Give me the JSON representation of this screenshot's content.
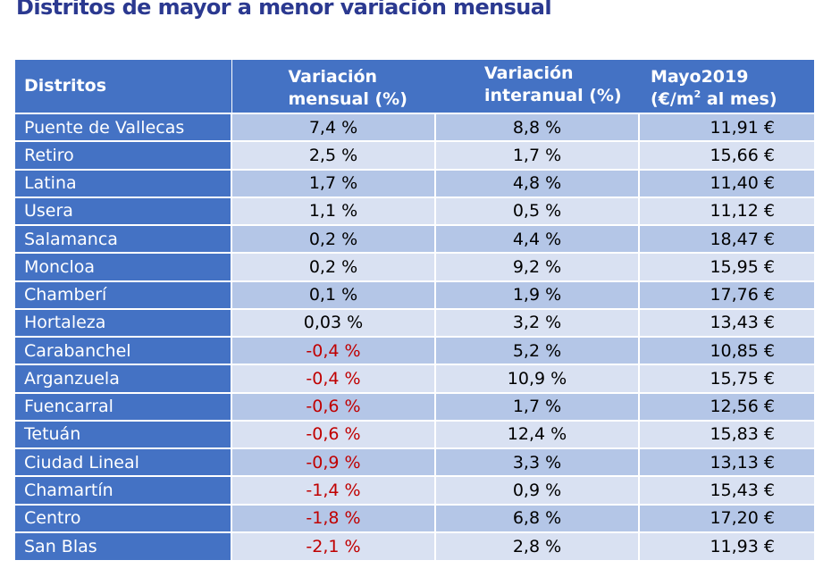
{
  "title": "Distritos de mayor a menor variación mensual",
  "colors": {
    "title": "#2b3990",
    "header_bg": "#4472c4",
    "row_dark": "#b4c6e7",
    "row_light": "#d9e1f2",
    "negative": "#c00000"
  },
  "headers": {
    "district": "Distritos",
    "monthly_line1": "Variación",
    "monthly_line2": "mensual (%)",
    "annual_line1": "Variación",
    "annual_line2": "interanual (%)",
    "price_line1": "Mayo2019",
    "price_line2_a": "(€/m",
    "price_line2_sup": "2",
    "price_line2_b": " al mes)"
  },
  "rows": [
    {
      "district": "Puente de Vallecas",
      "monthly": "7,4 %",
      "annual": "8,8 %",
      "price": "11,91 €"
    },
    {
      "district": "Retiro",
      "monthly": "2,5 %",
      "annual": "1,7 %",
      "price": "15,66 €"
    },
    {
      "district": "Latina",
      "monthly": "1,7 %",
      "annual": "4,8 %",
      "price": "11,40 €"
    },
    {
      "district": "Usera",
      "monthly": "1,1 %",
      "annual": "0,5 %",
      "price": "11,12 €"
    },
    {
      "district": "Salamanca",
      "monthly": "0,2 %",
      "annual": "4,4 %",
      "price": "18,47 €"
    },
    {
      "district": "Moncloa",
      "monthly": "0,2 %",
      "annual": "9,2 %",
      "price": "15,95 €"
    },
    {
      "district": "Chamberí",
      "monthly": "0,1 %",
      "annual": "1,9 %",
      "price": "17,76 €"
    },
    {
      "district": "Hortaleza",
      "monthly": "0,03 %",
      "annual": "3,2 %",
      "price": "13,43 €"
    },
    {
      "district": "Carabanchel",
      "monthly": "-0,4 %",
      "annual": "5,2 %",
      "price": "10,85 €"
    },
    {
      "district": "Arganzuela",
      "monthly": "-0,4 %",
      "annual": "10,9 %",
      "price": "15,75 €"
    },
    {
      "district": "Fuencarral",
      "monthly": "-0,6 %",
      "annual": "1,7 %",
      "price": "12,56 €"
    },
    {
      "district": "Tetuán",
      "monthly": "-0,6 %",
      "annual": "12,4 %",
      "price": "15,83 €"
    },
    {
      "district": "Ciudad Lineal",
      "monthly": "-0,9 %",
      "annual": "3,3 %",
      "price": "13,13 €"
    },
    {
      "district": "Chamartín",
      "monthly": "-1,4 %",
      "annual": "0,9 %",
      "price": "15,43 €"
    },
    {
      "district": "Centro",
      "monthly": "-1,8 %",
      "annual": "6,8 %",
      "price": "17,20 €"
    },
    {
      "district": "San Blas",
      "monthly": "-2,1 %",
      "annual": "2,8 %",
      "price": "11,93 €"
    }
  ]
}
